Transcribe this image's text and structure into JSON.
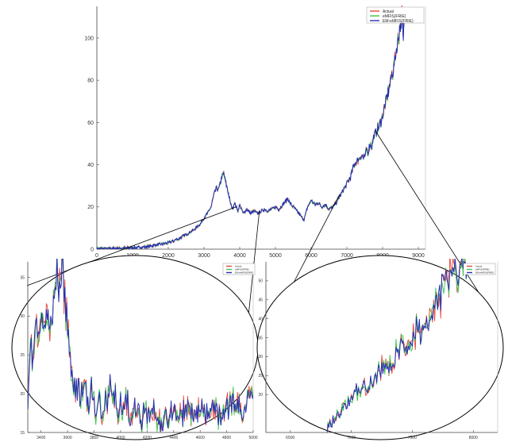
{
  "chart_data": [
    {
      "type": "line",
      "role": "main",
      "legend": {
        "placement": "top-right",
        "entries": [
          "Actual",
          "eMFIS(FRIE)",
          "EM-eMFIS(FRIE)"
        ]
      },
      "colors": {
        "Actual": "#e8463c",
        "eMFIS(FRIE)": "#3cc84a",
        "EM-eMFIS(FRIE)": "#2a2fb4"
      },
      "xlim": [
        0,
        9200
      ],
      "ylim": [
        0,
        115
      ],
      "x_ticks": [
        "0",
        "1000",
        "2000",
        "3000",
        "4000",
        "5000",
        "6000",
        "7000",
        "8000",
        "9000"
      ],
      "y_ticks": [
        "0",
        "20",
        "40",
        "60",
        "80",
        "100"
      ],
      "series_points": [
        [
          0,
          0.2
        ],
        [
          800,
          0.5
        ],
        [
          1300,
          1
        ],
        [
          1700,
          2
        ],
        [
          2000,
          3
        ],
        [
          2300,
          5
        ],
        [
          2500,
          7
        ],
        [
          2700,
          9
        ],
        [
          2900,
          12
        ],
        [
          3000,
          15
        ],
        [
          3100,
          17
        ],
        [
          3200,
          20
        ],
        [
          3250,
          24
        ],
        [
          3300,
          27
        ],
        [
          3350,
          29
        ],
        [
          3400,
          28
        ],
        [
          3450,
          31
        ],
        [
          3500,
          34
        ],
        [
          3550,
          36
        ],
        [
          3600,
          32
        ],
        [
          3650,
          29
        ],
        [
          3700,
          25
        ],
        [
          3750,
          21
        ],
        [
          3800,
          19
        ],
        [
          3850,
          22
        ],
        [
          3900,
          20
        ],
        [
          3950,
          18
        ],
        [
          4000,
          21
        ],
        [
          4100,
          17
        ],
        [
          4200,
          19
        ],
        [
          4300,
          17
        ],
        [
          4400,
          18
        ],
        [
          4500,
          17
        ],
        [
          4600,
          18
        ],
        [
          4700,
          19
        ],
        [
          4800,
          18
        ],
        [
          4900,
          19
        ],
        [
          5000,
          20
        ],
        [
          5100,
          19
        ],
        [
          5200,
          21
        ],
        [
          5300,
          23
        ],
        [
          5350,
          24
        ],
        [
          5400,
          22
        ],
        [
          5500,
          20
        ],
        [
          5600,
          18
        ],
        [
          5700,
          16
        ],
        [
          5800,
          14
        ],
        [
          5850,
          17
        ],
        [
          5900,
          20
        ],
        [
          6000,
          23
        ],
        [
          6100,
          21
        ],
        [
          6200,
          22
        ],
        [
          6300,
          20
        ],
        [
          6400,
          21
        ],
        [
          6500,
          19
        ],
        [
          6600,
          20
        ],
        [
          6700,
          22
        ],
        [
          6800,
          25
        ],
        [
          6900,
          28
        ],
        [
          7000,
          31
        ],
        [
          7100,
          34
        ],
        [
          7150,
          37
        ],
        [
          7200,
          40
        ],
        [
          7300,
          42
        ],
        [
          7400,
          44
        ],
        [
          7500,
          43
        ],
        [
          7550,
          47
        ],
        [
          7600,
          46
        ],
        [
          7650,
          50
        ],
        [
          7700,
          49
        ],
        [
          7750,
          53
        ],
        [
          7800,
          55
        ],
        [
          7900,
          58
        ],
        [
          8000,
          63
        ],
        [
          8100,
          70
        ],
        [
          8200,
          78
        ],
        [
          8300,
          85
        ],
        [
          8400,
          95
        ],
        [
          8450,
          101
        ],
        [
          8500,
          107
        ],
        [
          8550,
          111
        ],
        [
          8580,
          98
        ],
        [
          8600,
          108
        ],
        [
          8620,
          111
        ]
      ]
    },
    {
      "type": "line",
      "role": "zoom-left",
      "legend": {
        "placement": "top-right",
        "entries": [
          "Actual",
          "eMFIS(FRIE)",
          "EM-eMFIS(FRIE)"
        ]
      },
      "xlim": [
        3300,
        5000
      ],
      "ylim": [
        15,
        37
      ],
      "x_ticks": [
        "3400",
        "3600",
        "3800",
        "4000",
        "4200",
        "4400",
        "4600",
        "4800",
        "5000"
      ],
      "y_ticks": [
        "15",
        "20",
        "25",
        "30",
        "35"
      ],
      "series_points": [
        [
          3300,
          20
        ],
        [
          3320,
          27
        ],
        [
          3340,
          24
        ],
        [
          3360,
          29
        ],
        [
          3380,
          26
        ],
        [
          3400,
          30
        ],
        [
          3420,
          27
        ],
        [
          3440,
          31
        ],
        [
          3460,
          28
        ],
        [
          3480,
          32
        ],
        [
          3500,
          30
        ],
        [
          3520,
          36
        ],
        [
          3540,
          33
        ],
        [
          3560,
          37
        ],
        [
          3580,
          31
        ],
        [
          3600,
          29
        ],
        [
          3620,
          25
        ],
        [
          3640,
          22
        ],
        [
          3660,
          20
        ],
        [
          3680,
          21
        ],
        [
          3700,
          19
        ],
        [
          3720,
          22
        ],
        [
          3740,
          20
        ],
        [
          3760,
          18
        ],
        [
          3780,
          21
        ],
        [
          3800,
          19
        ],
        [
          3820,
          17
        ],
        [
          3840,
          20
        ],
        [
          3860,
          16
        ],
        [
          3880,
          19
        ],
        [
          3900,
          18
        ],
        [
          3920,
          21
        ],
        [
          3940,
          19
        ],
        [
          3960,
          20
        ],
        [
          3980,
          18
        ],
        [
          4000,
          19
        ],
        [
          4020,
          17
        ],
        [
          4040,
          20
        ],
        [
          4060,
          18
        ],
        [
          4080,
          17
        ],
        [
          4100,
          19
        ],
        [
          4120,
          17
        ],
        [
          4140,
          18
        ],
        [
          4160,
          16
        ],
        [
          4180,
          18
        ],
        [
          4200,
          17
        ],
        [
          4250,
          18
        ],
        [
          4300,
          16
        ],
        [
          4350,
          17
        ],
        [
          4400,
          18
        ],
        [
          4450,
          17
        ],
        [
          4500,
          18
        ],
        [
          4550,
          17
        ],
        [
          4600,
          18
        ],
        [
          4650,
          17
        ],
        [
          4700,
          18
        ],
        [
          4750,
          17
        ],
        [
          4800,
          18
        ],
        [
          4850,
          19
        ],
        [
          4900,
          18
        ],
        [
          4950,
          19
        ],
        [
          5000,
          20
        ]
      ]
    },
    {
      "type": "line",
      "role": "zoom-right",
      "legend": {
        "placement": "top-right",
        "entries": [
          "Actual",
          "eMFIS(FRIE)",
          "EM-eMFIS(FRIE)"
        ]
      },
      "xlim": [
        6300,
        8200
      ],
      "ylim": [
        10,
        55
      ],
      "x_ticks": [
        "6500",
        "7000",
        "7500",
        "8000"
      ],
      "y_ticks": [
        "20",
        "25",
        "30",
        "35",
        "40",
        "45",
        "50"
      ],
      "series_points": [
        [
          6800,
          11
        ],
        [
          6850,
          13
        ],
        [
          6900,
          15
        ],
        [
          6950,
          17
        ],
        [
          7000,
          19
        ],
        [
          7050,
          21
        ],
        [
          7100,
          23
        ],
        [
          7150,
          22
        ],
        [
          7200,
          25
        ],
        [
          7250,
          28
        ],
        [
          7300,
          26
        ],
        [
          7350,
          30
        ],
        [
          7400,
          33
        ],
        [
          7450,
          31
        ],
        [
          7500,
          35
        ],
        [
          7550,
          38
        ],
        [
          7600,
          36
        ],
        [
          7650,
          40
        ],
        [
          7700,
          44
        ],
        [
          7750,
          47
        ],
        [
          7800,
          50
        ],
        [
          7850,
          52
        ],
        [
          7900,
          53
        ],
        [
          7950,
          54
        ]
      ]
    }
  ]
}
